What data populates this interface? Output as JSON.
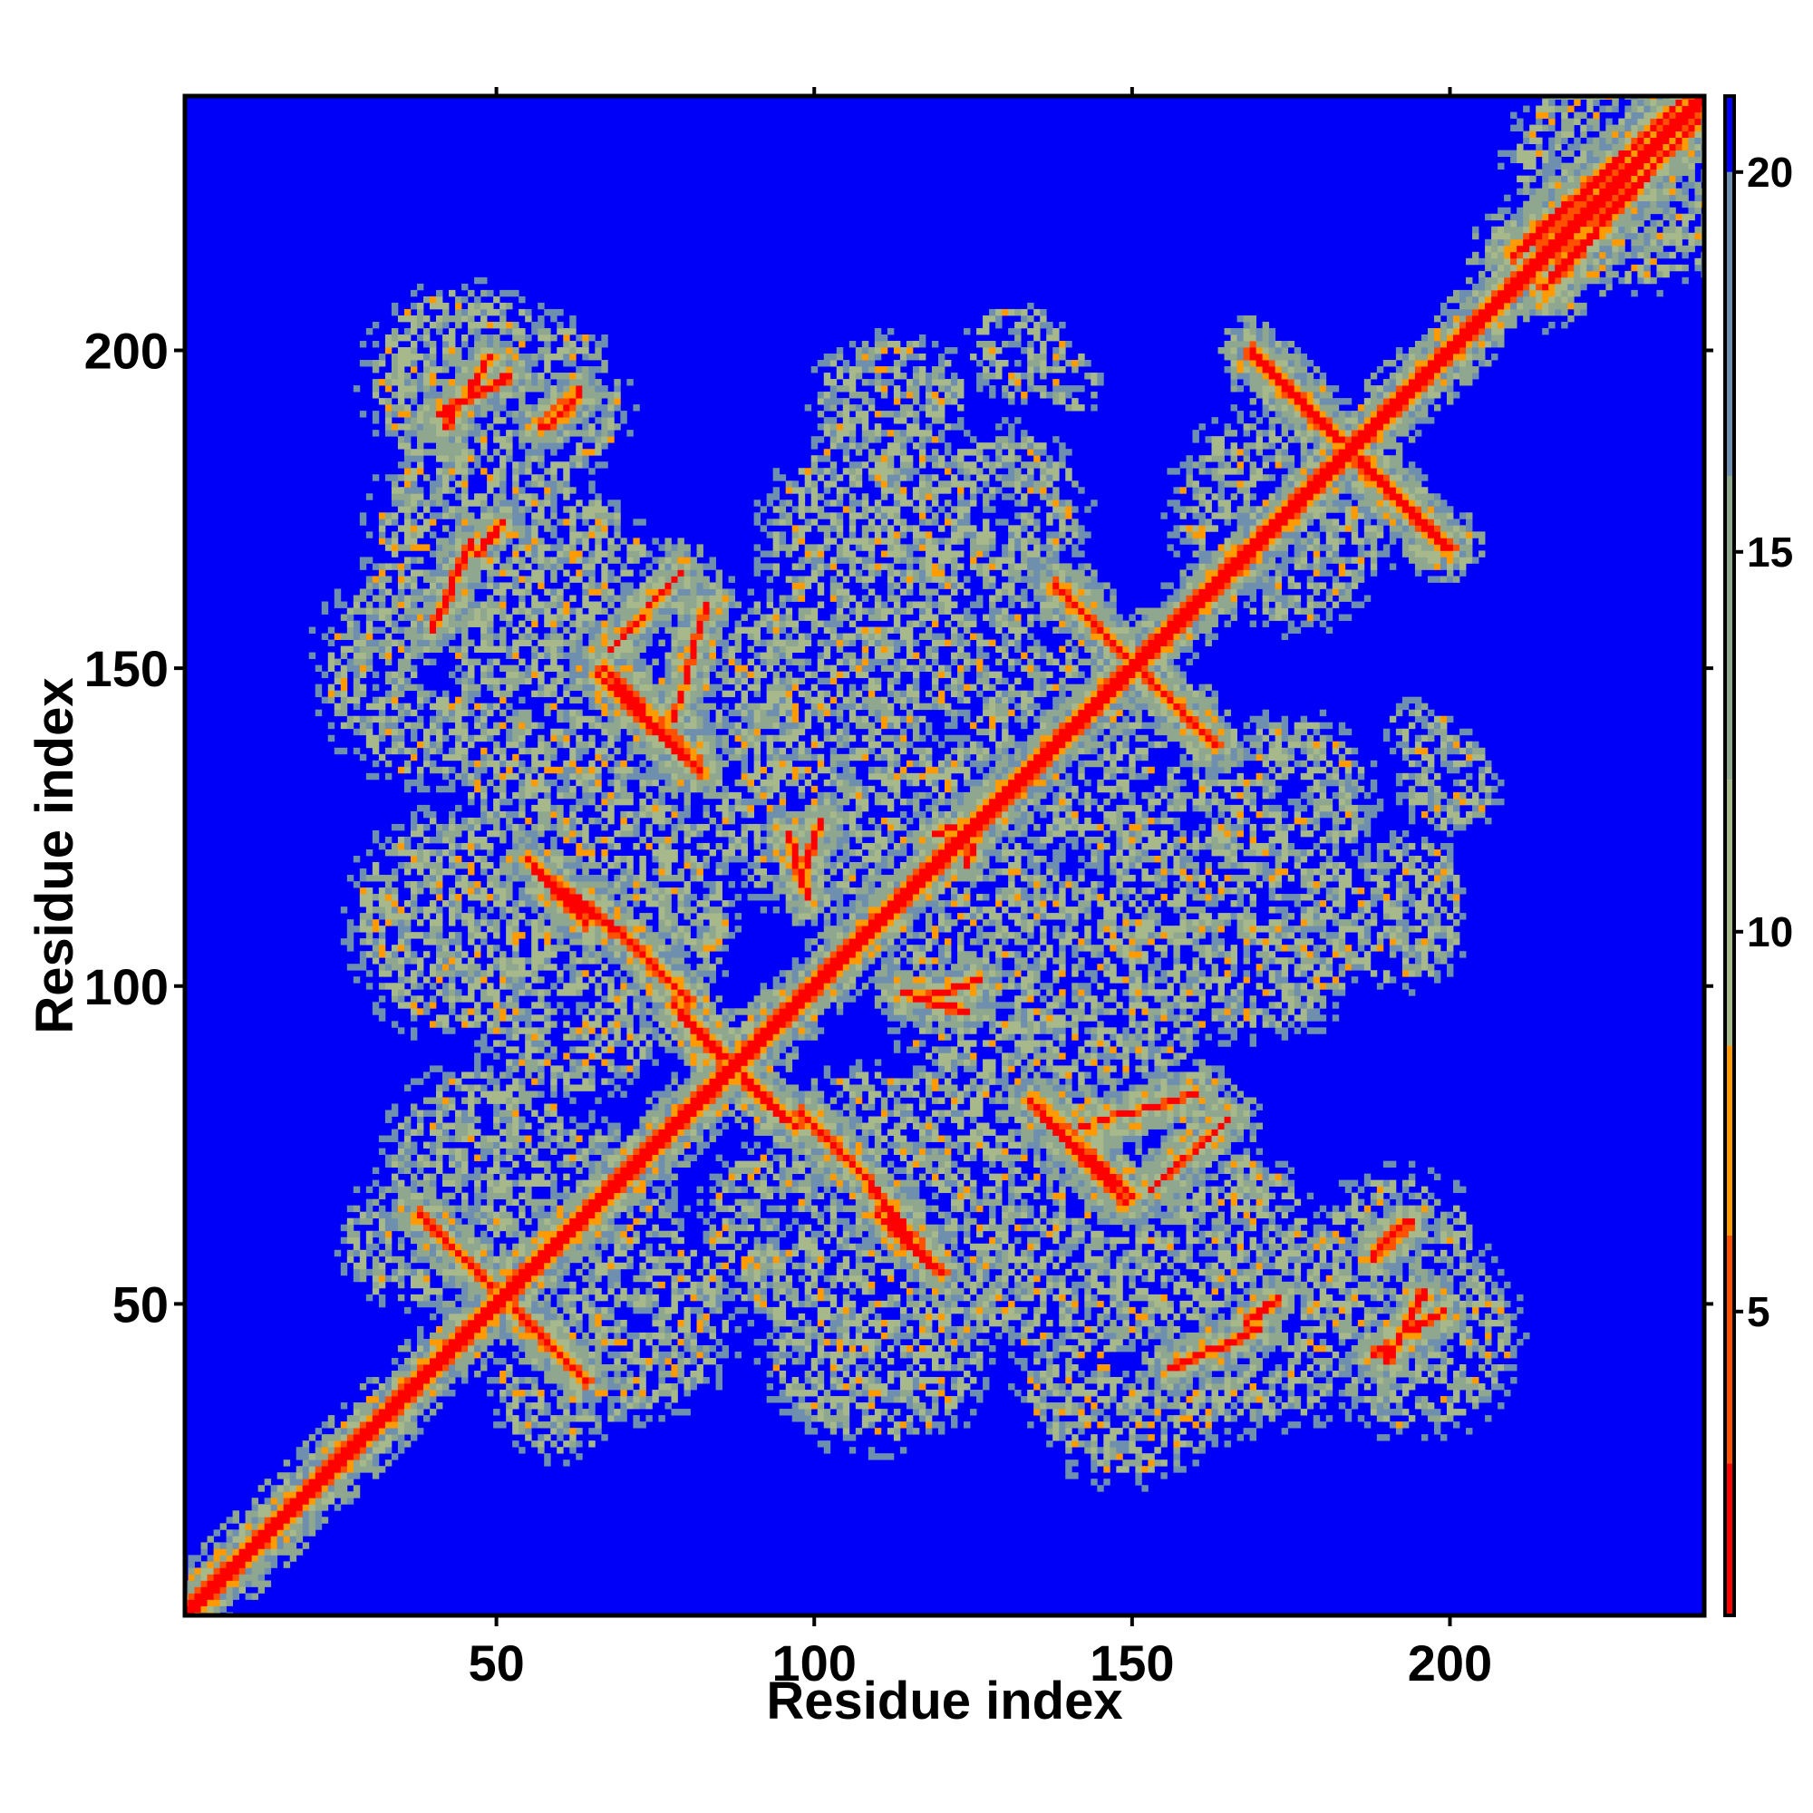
{
  "chart_data": {
    "type": "heatmap",
    "title": "",
    "xlabel": "Residue index",
    "ylabel": "Residue index",
    "n_residues": 240,
    "xlim": [
      1,
      240
    ],
    "ylim": [
      1,
      240
    ],
    "x_ticks": [
      50,
      100,
      150,
      200
    ],
    "y_ticks": [
      50,
      100,
      150,
      200
    ],
    "grid": false,
    "colorbar": {
      "position": "right",
      "ticks": [
        5,
        10,
        15,
        20
      ],
      "range": [
        1,
        21
      ],
      "levels": [
        {
          "max": 3,
          "color": "#ff0000"
        },
        {
          "max": 6,
          "color": "#ff5000"
        },
        {
          "max": 8.5,
          "color": "#ff9a00"
        },
        {
          "max": 12,
          "color": "#a7b98b"
        },
        {
          "max": 16,
          "color": "#8fa78f"
        },
        {
          "max": 20,
          "color": "#6f8fae"
        },
        {
          "max": 21,
          "color": "#0000ff"
        }
      ]
    },
    "background_color": "#0000f8",
    "contact_segments": [
      {
        "type": "diag",
        "from": [
          1,
          1
        ],
        "to": [
          240,
          240
        ],
        "core": 1.6,
        "width": 4.2
      },
      {
        "type": "anti",
        "from": [
          38,
          64
        ],
        "to": [
          64,
          38
        ],
        "core": 1.1,
        "width": 3.8
      },
      {
        "type": "anti",
        "from": [
          55,
          120
        ],
        "to": [
          64,
          110
        ],
        "core": 1.1,
        "width": 3.4
      },
      {
        "type": "anti",
        "from": [
          70,
          108
        ],
        "to": [
          80,
          98
        ],
        "core": 1.1,
        "width": 3.6
      },
      {
        "type": "anti",
        "from": [
          84,
          90
        ],
        "to": [
          97,
          78
        ],
        "core": 1.2,
        "width": 4.0
      },
      {
        "type": "anti",
        "from": [
          66,
          149
        ],
        "to": [
          82,
          134
        ],
        "core": 1.1,
        "width": 3.8
      },
      {
        "type": "anti",
        "from": [
          107,
          71
        ],
        "to": [
          118,
          57
        ],
        "core": 1.1,
        "width": 3.6
      },
      {
        "type": "anti",
        "from": [
          136,
          81
        ],
        "to": [
          150,
          67
        ],
        "core": 1.1,
        "width": 3.8
      },
      {
        "type": "anti",
        "from": [
          138,
          163
        ],
        "to": [
          163,
          138
        ],
        "core": 1.1,
        "width": 3.8
      },
      {
        "type": "anti",
        "from": [
          169,
          200
        ],
        "to": [
          199,
          169
        ],
        "core": 1.1,
        "width": 3.8
      },
      {
        "type": "diag",
        "from": [
          40,
          156
        ],
        "to": [
          46,
          170
        ],
        "core": 0.9,
        "width": 3.4
      },
      {
        "type": "diag",
        "from": [
          78,
          142
        ],
        "to": [
          83,
          160
        ],
        "core": 0.6,
        "width": 3.8
      },
      {
        "type": "diag",
        "from": [
          98,
          117
        ],
        "to": [
          101,
          126
        ],
        "core": 0.9,
        "width": 3.2
      },
      {
        "type": "diag",
        "from": [
          114,
          99
        ],
        "to": [
          124,
          96
        ],
        "core": 0.9,
        "width": 3.2
      },
      {
        "type": "diag",
        "from": [
          124,
          119
        ],
        "to": [
          127,
          128
        ],
        "core": 0.9,
        "width": 3.0
      },
      {
        "type": "diag",
        "from": [
          153,
          68
        ],
        "to": [
          165,
          79
        ],
        "core": 0.6,
        "width": 3.6
      },
      {
        "type": "diag",
        "from": [
          168,
          47
        ],
        "to": [
          173,
          51
        ],
        "core": 0.9,
        "width": 3.0
      },
      {
        "type": "diag",
        "from": [
          190,
          41
        ],
        "to": [
          196,
          52
        ],
        "core": 0.9,
        "width": 3.2
      },
      {
        "type": "diag",
        "from": [
          188,
          58
        ],
        "to": [
          193,
          63
        ],
        "core": 0.9,
        "width": 3.0
      },
      {
        "type": "diag",
        "from": [
          42,
          188
        ],
        "to": [
          49,
          199
        ],
        "core": 0.9,
        "width": 3.2
      },
      {
        "type": "diag",
        "from": [
          57,
          188
        ],
        "to": [
          63,
          194
        ],
        "core": 0.9,
        "width": 3.0
      },
      {
        "type": "diag",
        "from": [
          210,
          215
        ],
        "to": [
          238,
          240
        ],
        "core": 1.2,
        "width": 5.0
      }
    ],
    "contact_clusters": [
      {
        "center": [
          48,
          170
        ],
        "radius": 14
      },
      {
        "center": [
          62,
          165
        ],
        "radius": 10
      },
      {
        "center": [
          42,
          150
        ],
        "radius": 14
      },
      {
        "center": [
          56,
          140
        ],
        "radius": 12
      },
      {
        "center": [
          80,
          130
        ],
        "radius": 12
      },
      {
        "center": [
          45,
          110
        ],
        "radius": 14
      },
      {
        "center": [
          62,
          98
        ],
        "radius": 12
      },
      {
        "center": [
          48,
          72
        ],
        "radius": 12
      },
      {
        "center": [
          64,
          60
        ],
        "radius": 12
      },
      {
        "center": [
          70,
          48
        ],
        "radius": 10
      },
      {
        "center": [
          60,
          36
        ],
        "radius": 8
      },
      {
        "center": [
          45,
          195
        ],
        "radius": 12
      },
      {
        "center": [
          58,
          192
        ],
        "radius": 10
      },
      {
        "center": [
          100,
          130
        ],
        "radius": 14
      },
      {
        "center": [
          97,
          150
        ],
        "radius": 10
      },
      {
        "center": [
          110,
          158
        ],
        "radius": 10
      },
      {
        "center": [
          112,
          120
        ],
        "radius": 12
      },
      {
        "center": [
          108,
          175
        ],
        "radius": 6
      },
      {
        "center": [
          110,
          192
        ],
        "radius": 8
      },
      {
        "center": [
          132,
          200
        ],
        "radius": 6
      },
      {
        "center": [
          125,
          160
        ],
        "radius": 8
      },
      {
        "center": [
          140,
          140
        ],
        "radius": 12
      },
      {
        "center": [
          145,
          100
        ],
        "radius": 12
      },
      {
        "center": [
          140,
          120
        ],
        "radius": 12
      },
      {
        "center": [
          112,
          52
        ],
        "radius": 14
      },
      {
        "center": [
          110,
          72
        ],
        "radius": 12
      },
      {
        "center": [
          130,
          64
        ],
        "radius": 10
      },
      {
        "center": [
          150,
          40
        ],
        "radius": 14
      },
      {
        "center": [
          160,
          58
        ],
        "radius": 12
      },
      {
        "center": [
          168,
          48
        ],
        "radius": 10
      },
      {
        "center": [
          170,
          110
        ],
        "radius": 14
      },
      {
        "center": [
          175,
          130
        ],
        "radius": 10
      },
      {
        "center": [
          172,
          175
        ],
        "radius": 12
      },
      {
        "center": [
          192,
          50
        ],
        "radius": 10
      },
      {
        "center": [
          193,
          115
        ],
        "radius": 7
      },
      {
        "center": [
          200,
          132
        ],
        "radius": 5
      },
      {
        "center": [
          195,
          140
        ],
        "radius": 4
      },
      {
        "center": [
          225,
          230
        ],
        "radius": 12
      }
    ]
  }
}
